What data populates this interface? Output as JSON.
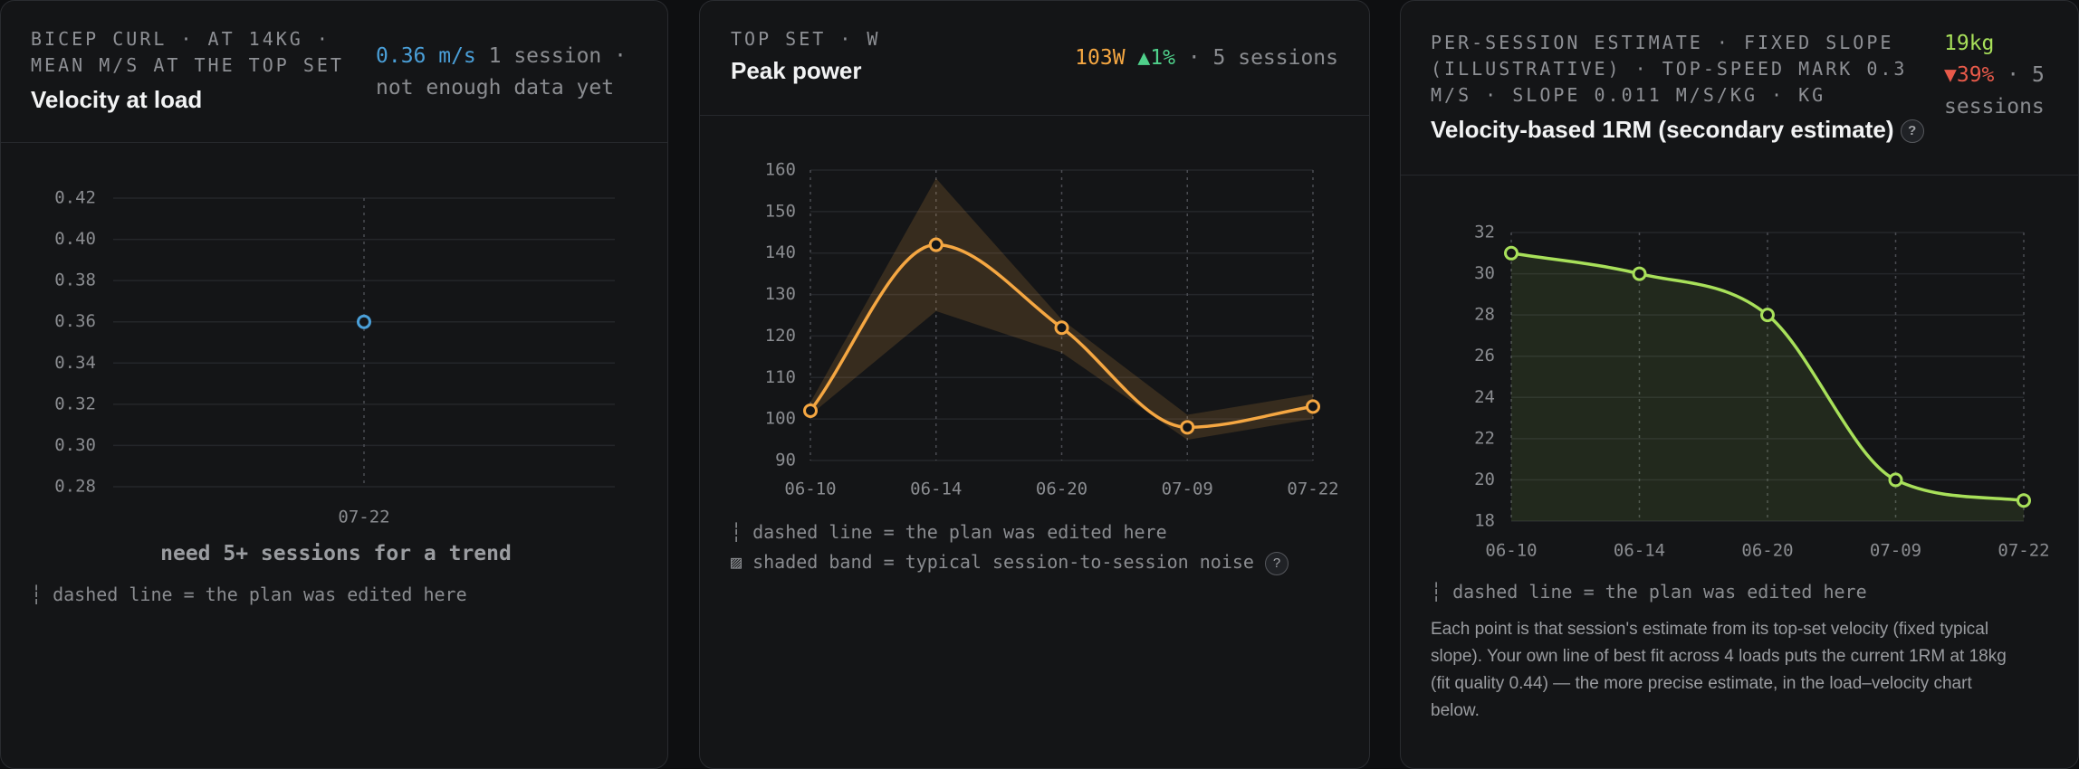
{
  "chart_data": [
    {
      "type": "line",
      "eyebrow": "BICEP CURL · AT 14KG · MEAN M/S AT THE TOP SET",
      "title": "Velocity at load",
      "headline": "0.36 m/s",
      "sessions": "1 session · not enough data yet",
      "categories": [
        "07-22"
      ],
      "values": [
        0.36
      ],
      "color": "#4a9fd8",
      "ylim": [
        0.28,
        0.42
      ],
      "yticks": [
        0.28,
        {
          "value": 0.3,
          "label": "0.30"
        },
        0.32,
        0.34,
        0.36,
        0.38,
        {
          "value": 0.4,
          "label": "0.40"
        },
        0.42
      ],
      "grid": true,
      "trend_note": "need 5+ sessions for a trend",
      "notes": [
        "┆ dashed line = the plan was edited here"
      ]
    },
    {
      "type": "line",
      "eyebrow": "TOP SET · W",
      "title": "Peak power",
      "headline": "103W",
      "change": "▲1%",
      "sessions": "· 5 sessions",
      "categories": [
        "06-10",
        "06-14",
        "06-20",
        "07-09",
        "07-22"
      ],
      "values": [
        102,
        142,
        122,
        98,
        103
      ],
      "band_low": [
        101,
        126,
        116,
        95,
        100
      ],
      "band_high": [
        104,
        158,
        124,
        101,
        106
      ],
      "color": "#f5a742",
      "ylim": [
        90,
        160
      ],
      "yticks": [
        90,
        100,
        110,
        120,
        130,
        140,
        150,
        160
      ],
      "grid": true,
      "notes": [
        "┆ dashed line = the plan was edited here",
        "▨ shaded band = typical session-to-session noise"
      ],
      "help": "?"
    },
    {
      "type": "area",
      "eyebrow": "PER-SESSION ESTIMATE · FIXED SLOPE (ILLUSTRATIVE) · TOP-SPEED MARK 0.3 M/S · SLOPE 0.011 M/S/KG · KG",
      "title": "Velocity-based 1RM (secondary estimate)",
      "help": "?",
      "headline": "19kg",
      "change": "▼39%",
      "sessions": "· 5 sessions",
      "categories": [
        "06-10",
        "06-14",
        "06-20",
        "07-09",
        "07-22"
      ],
      "values": [
        31,
        30,
        28,
        20,
        19
      ],
      "color": "#a8e05a",
      "ylim": [
        18,
        32
      ],
      "yticks": [
        18,
        20,
        22,
        24,
        26,
        28,
        30,
        32
      ],
      "grid": true,
      "notes": [
        "┆ dashed line = the plan was edited here"
      ],
      "description": "Each point is that session's estimate from its top-set velocity (fixed typical slope). Your own line of best fit across 4 loads puts the current 1RM at 18kg (fit quality 0.44) — the more precise estimate, in the load–velocity chart below."
    }
  ]
}
